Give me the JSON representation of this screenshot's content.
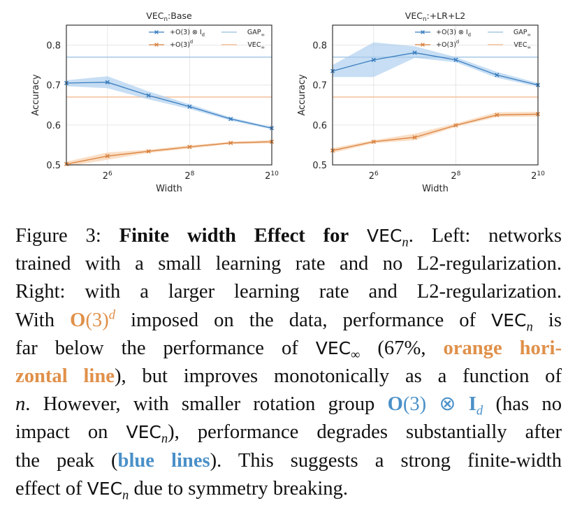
{
  "chart_data": [
    {
      "type": "line",
      "title": "VEC_n:Base",
      "title_main": "VEC",
      "title_sub": "n",
      "title_rest": ":Base",
      "xlabel": "Width",
      "ylabel": "Accuracy",
      "xscale": "log2",
      "x": [
        32,
        64,
        128,
        256,
        512,
        1024
      ],
      "xlim": [
        32,
        1024
      ],
      "ylim": [
        0.5,
        0.85
      ],
      "xticks": [
        {
          "value": 64,
          "base": "2",
          "exp": "6"
        },
        {
          "value": 256,
          "base": "2",
          "exp": "8"
        },
        {
          "value": 1024,
          "base": "2",
          "exp": "10"
        }
      ],
      "yticks": [
        {
          "value": 0.5,
          "label": "0.5"
        },
        {
          "value": 0.6,
          "label": "0.6"
        },
        {
          "value": 0.7,
          "label": "0.7"
        },
        {
          "value": 0.8,
          "label": "0.8"
        }
      ],
      "grid": true,
      "legend_position": "top-right",
      "series": [
        {
          "name": "+O(3) ⊗ I_d",
          "legend_main": "+O(3) ⊗ I",
          "legend_sub": "d",
          "legend_sup": "",
          "color": "#3a7ebf",
          "band_color": "#a9cdee",
          "marker": "x",
          "values": [
            0.705,
            0.707,
            0.674,
            0.646,
            0.615,
            0.592
          ],
          "lower": [
            0.697,
            0.692,
            0.664,
            0.64,
            0.611,
            0.589
          ],
          "upper": [
            0.712,
            0.722,
            0.684,
            0.652,
            0.619,
            0.595
          ]
        },
        {
          "name": "+O(3)^d",
          "legend_main": "+O(3)",
          "legend_sub": "",
          "legend_sup": "d",
          "color": "#d9823f",
          "band_color": "#f8cda6",
          "marker": "x",
          "values": [
            0.502,
            0.522,
            0.534,
            0.545,
            0.555,
            0.558
          ],
          "lower": [
            0.496,
            0.513,
            0.53,
            0.541,
            0.552,
            0.554
          ],
          "upper": [
            0.508,
            0.531,
            0.538,
            0.549,
            0.558,
            0.562
          ]
        }
      ],
      "hlines": [
        {
          "name": "GAP∞",
          "legend_main": "GAP",
          "legend_sub": "∞",
          "value": 0.77,
          "color": "#a6c8e4"
        },
        {
          "name": "VEC∞",
          "legend_main": "VEC",
          "legend_sub": "∞",
          "value": 0.67,
          "color": "#f4bf99"
        }
      ]
    },
    {
      "type": "line",
      "title": "VEC_n:+LR+L2",
      "title_main": "VEC",
      "title_sub": "n",
      "title_rest": ":+LR+L2",
      "xlabel": "Width",
      "ylabel": "Accuracy",
      "xscale": "log2",
      "x": [
        32,
        64,
        128,
        256,
        512,
        1024
      ],
      "xlim": [
        32,
        1024
      ],
      "ylim": [
        0.5,
        0.85
      ],
      "xticks": [
        {
          "value": 64,
          "base": "2",
          "exp": "6"
        },
        {
          "value": 256,
          "base": "2",
          "exp": "8"
        },
        {
          "value": 1024,
          "base": "2",
          "exp": "10"
        }
      ],
      "yticks": [
        {
          "value": 0.5,
          "label": "0.5"
        },
        {
          "value": 0.6,
          "label": "0.6"
        },
        {
          "value": 0.7,
          "label": "0.7"
        },
        {
          "value": 0.8,
          "label": "0.8"
        }
      ],
      "grid": true,
      "legend_position": "top-right",
      "series": [
        {
          "name": "+O(3) ⊗ I_d",
          "legend_main": "+O(3) ⊗ I",
          "legend_sub": "d",
          "legend_sup": "",
          "color": "#3a7ebf",
          "band_color": "#a9cdee",
          "marker": "x",
          "values": [
            0.735,
            0.763,
            0.781,
            0.763,
            0.725,
            0.7
          ],
          "lower": [
            0.72,
            0.72,
            0.768,
            0.757,
            0.718,
            0.696
          ],
          "upper": [
            0.75,
            0.807,
            0.797,
            0.77,
            0.733,
            0.705
          ]
        },
        {
          "name": "+O(3)^d",
          "legend_main": "+O(3)",
          "legend_sub": "",
          "legend_sup": "d",
          "color": "#d9823f",
          "band_color": "#f8cda6",
          "marker": "x",
          "values": [
            0.536,
            0.558,
            0.569,
            0.599,
            0.625,
            0.627
          ],
          "lower": [
            0.53,
            0.554,
            0.562,
            0.595,
            0.62,
            0.621
          ],
          "upper": [
            0.542,
            0.562,
            0.578,
            0.604,
            0.632,
            0.633
          ]
        }
      ],
      "hlines": [
        {
          "name": "GAP∞",
          "legend_main": "GAP",
          "legend_sub": "∞",
          "value": 0.77,
          "color": "#a6c8e4"
        },
        {
          "name": "VEC∞",
          "legend_main": "VEC",
          "legend_sub": "∞",
          "value": 0.67,
          "color": "#f4bf99"
        }
      ]
    }
  ],
  "caption": {
    "figure_label": "Figure 3:",
    "bold_title": "Finite width Effect for",
    "vec": "VEC",
    "n": "n",
    "inf": "∞",
    "l1_end": ". Left: networks",
    "l2": "trained with a small learning rate and no L2-regularization.",
    "l3": "Right: with a larger learning rate and L2-regularization.",
    "l4_a": "With",
    "o3": "O",
    "o3_paren": "(3)",
    "d": "d",
    "l4_b": "imposed on the data, performance of",
    "l4_c": "is",
    "l5_a": "far below the performance of",
    "l5_b": "(67%,",
    "orange_hori": "orange hori-",
    "orange_zontal": "zontal line",
    "l6_b": "), but improves monotonically as a function of",
    "l7_a": ". However, with smaller rotation group",
    "otimes": " ⊗ ",
    "I": "I",
    "l7_b": "(has no",
    "l8_a": "impact on",
    "l8_b": "), performance degrades substantially after",
    "l9_a": "the peak (",
    "blue_lines": "blue lines",
    "l9_b": "). This suggests a strong finite-width",
    "l10_a": "effect of",
    "l10_b": "due to symmetry breaking."
  }
}
